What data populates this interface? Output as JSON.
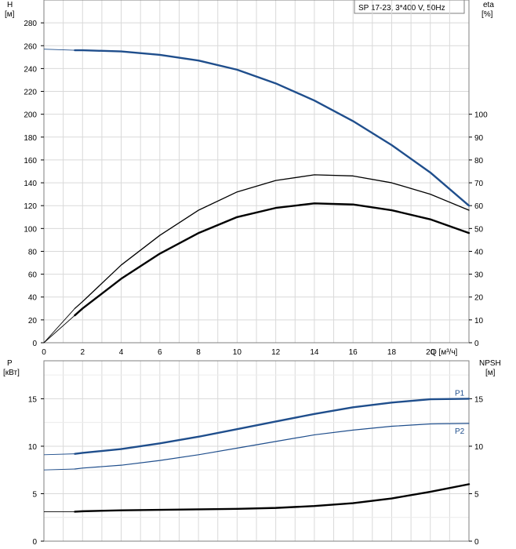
{
  "chart_data": [
    {
      "type": "line",
      "title": "SP 17-23, 3*400 V, 50Hz",
      "ylabel_left": "H",
      "yunit_left": "[м]",
      "ylabel_right": "eta",
      "yunit_right": "[%]",
      "xlabel": "Q [м³/ч]",
      "xlim": [
        0,
        22
      ],
      "xticks": [
        0,
        2,
        4,
        6,
        8,
        10,
        12,
        14,
        16,
        18,
        20
      ],
      "ylim_left": [
        0,
        300
      ],
      "yticks_left": [
        0,
        20,
        40,
        60,
        80,
        100,
        120,
        140,
        160,
        180,
        200,
        220,
        240,
        260,
        280
      ],
      "ylim_right": [
        0,
        150
      ],
      "yticks_right": [
        0,
        10,
        20,
        30,
        40,
        50,
        60,
        70,
        80,
        90,
        100
      ],
      "grid": true,
      "series": [
        {
          "axis": "left",
          "color": "#1f4e8c",
          "width": 2.4,
          "extension": [
            [
              0,
              257
            ],
            [
              1.6,
              256
            ]
          ],
          "x": [
            1.6,
            2,
            4,
            6,
            8,
            10,
            12,
            14,
            16,
            18,
            20,
            22
          ],
          "y": [
            256,
            256,
            255,
            252,
            247,
            239,
            227,
            212,
            194,
            173,
            149,
            120
          ]
        },
        {
          "axis": "right",
          "color": "#000000",
          "width": 1.3,
          "extension": [
            [
              0,
              0
            ],
            [
              1.6,
              15
            ]
          ],
          "x": [
            1.6,
            2,
            4,
            6,
            8,
            10,
            12,
            14,
            16,
            18,
            20,
            22
          ],
          "y": [
            15,
            18,
            34,
            47,
            58,
            66,
            71,
            73.5,
            73,
            70,
            65,
            58
          ]
        },
        {
          "axis": "right",
          "color": "#000000",
          "width": 2.4,
          "extension": [
            [
              0,
              0
            ],
            [
              1.6,
              12
            ]
          ],
          "x": [
            1.6,
            2,
            4,
            6,
            8,
            10,
            12,
            14,
            16,
            18,
            20,
            22
          ],
          "y": [
            12,
            15,
            28,
            39,
            48,
            55,
            59,
            61,
            60.5,
            58,
            54,
            48
          ]
        }
      ]
    },
    {
      "type": "line",
      "ylabel_left": "P",
      "yunit_left": "[кВт]",
      "ylabel_right": "NPSH",
      "yunit_right": "[м]",
      "xlim": [
        0,
        22
      ],
      "ylim_left": [
        0,
        19
      ],
      "yticks_left": [
        0,
        5,
        10,
        15
      ],
      "ylim_right": [
        0,
        19
      ],
      "yticks_right": [
        0,
        5,
        10,
        15
      ],
      "grid": true,
      "series": [
        {
          "name": "P1",
          "axis": "left",
          "color": "#1f4e8c",
          "width": 2.4,
          "extension": [
            [
              0,
              9.1
            ],
            [
              1.6,
              9.2
            ]
          ],
          "x": [
            1.6,
            2,
            4,
            6,
            8,
            10,
            12,
            14,
            16,
            18,
            20,
            22
          ],
          "y": [
            9.2,
            9.3,
            9.7,
            10.3,
            11.0,
            11.8,
            12.6,
            13.4,
            14.1,
            14.6,
            14.95,
            15.0
          ]
        },
        {
          "name": "P2",
          "axis": "left",
          "color": "#1f4e8c",
          "width": 1.2,
          "extension": [
            [
              0,
              7.5
            ],
            [
              1.6,
              7.6
            ]
          ],
          "x": [
            1.6,
            2,
            4,
            6,
            8,
            10,
            12,
            14,
            16,
            18,
            20,
            22
          ],
          "y": [
            7.6,
            7.7,
            8.0,
            8.5,
            9.1,
            9.8,
            10.5,
            11.2,
            11.7,
            12.1,
            12.35,
            12.4
          ]
        },
        {
          "axis": "right",
          "color": "#000000",
          "width": 2.4,
          "extension": [
            [
              0,
              3.1
            ],
            [
              1.6,
              3.1
            ]
          ],
          "x": [
            1.6,
            2,
            4,
            6,
            8,
            10,
            12,
            14,
            16,
            18,
            20,
            22
          ],
          "y": [
            3.1,
            3.15,
            3.25,
            3.3,
            3.35,
            3.4,
            3.5,
            3.7,
            4.0,
            4.5,
            5.2,
            6.0
          ]
        }
      ]
    }
  ]
}
